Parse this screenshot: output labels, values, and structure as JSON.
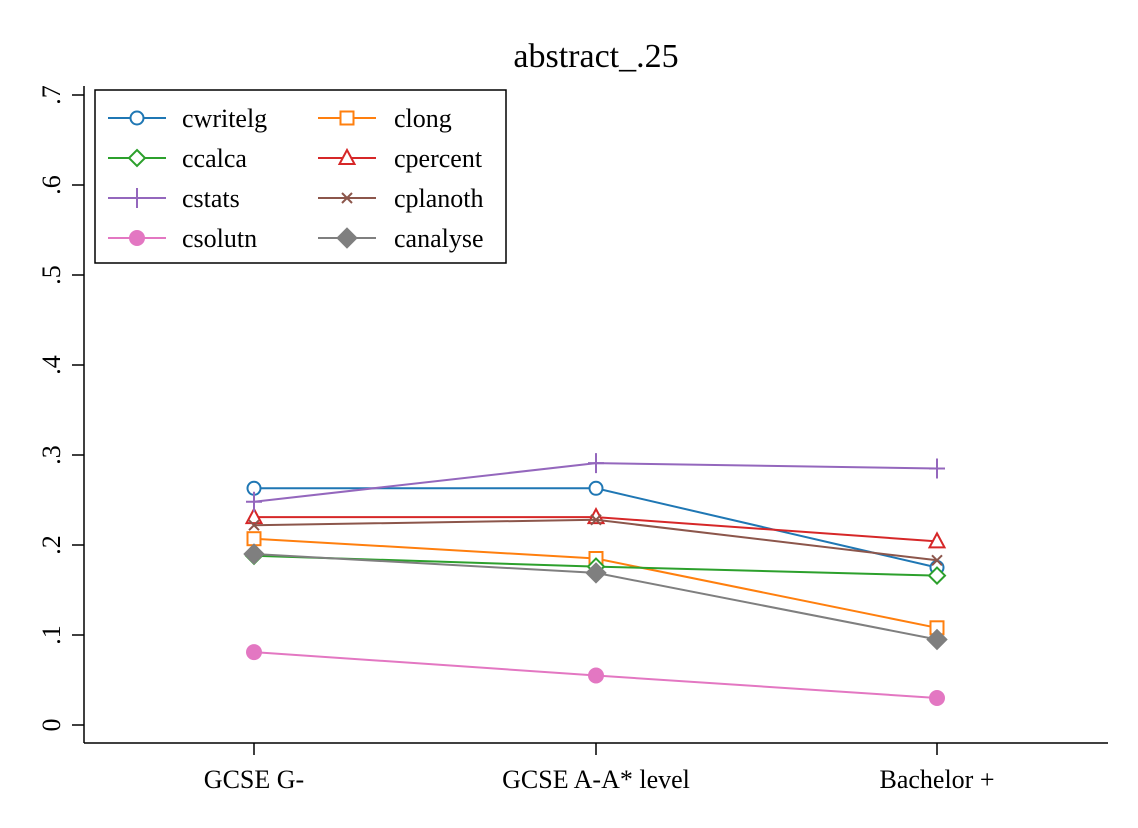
{
  "chart_data": {
    "type": "line",
    "title": "abstract_.25",
    "xlabel": "",
    "ylabel": "",
    "categories": [
      "GCSE G-",
      "GCSE A-A* level",
      "Bachelor +"
    ],
    "yticks": [
      {
        "value": 0,
        "label": "0"
      },
      {
        "value": 0.1,
        "label": ".1"
      },
      {
        "value": 0.2,
        "label": ".2"
      },
      {
        "value": 0.3,
        "label": ".3"
      },
      {
        "value": 0.4,
        "label": ".4"
      },
      {
        "value": 0.5,
        "label": ".5"
      },
      {
        "value": 0.6,
        "label": ".6"
      },
      {
        "value": 0.7,
        "label": ".7"
      }
    ],
    "ylim": [
      -0.02,
      0.71
    ],
    "grid": false,
    "legend_position": "top-left",
    "series": [
      {
        "name": "cwritelg",
        "color": "#1f77b4",
        "marker": "circle-hollow",
        "values": [
          0.263,
          0.263,
          0.175
        ]
      },
      {
        "name": "clong",
        "color": "#ff7f0e",
        "marker": "square-hollow",
        "values": [
          0.207,
          0.185,
          0.108
        ]
      },
      {
        "name": "ccalca",
        "color": "#2ca02c",
        "marker": "diamond-hollow",
        "values": [
          0.188,
          0.176,
          0.166
        ]
      },
      {
        "name": "cpercent",
        "color": "#d62728",
        "marker": "triangle-hollow",
        "values": [
          0.231,
          0.231,
          0.204
        ]
      },
      {
        "name": "cstats",
        "color": "#9467bd",
        "marker": "plus",
        "values": [
          0.248,
          0.291,
          0.285
        ]
      },
      {
        "name": "cplanoth",
        "color": "#8c564b",
        "marker": "x",
        "values": [
          0.222,
          0.228,
          0.183
        ]
      },
      {
        "name": "csolutn",
        "color": "#e377c2",
        "marker": "circle-filled",
        "values": [
          0.081,
          0.055,
          0.03
        ]
      },
      {
        "name": "canalyse",
        "color": "#7f7f7f",
        "marker": "diamond-filled",
        "values": [
          0.19,
          0.169,
          0.095
        ]
      }
    ]
  }
}
